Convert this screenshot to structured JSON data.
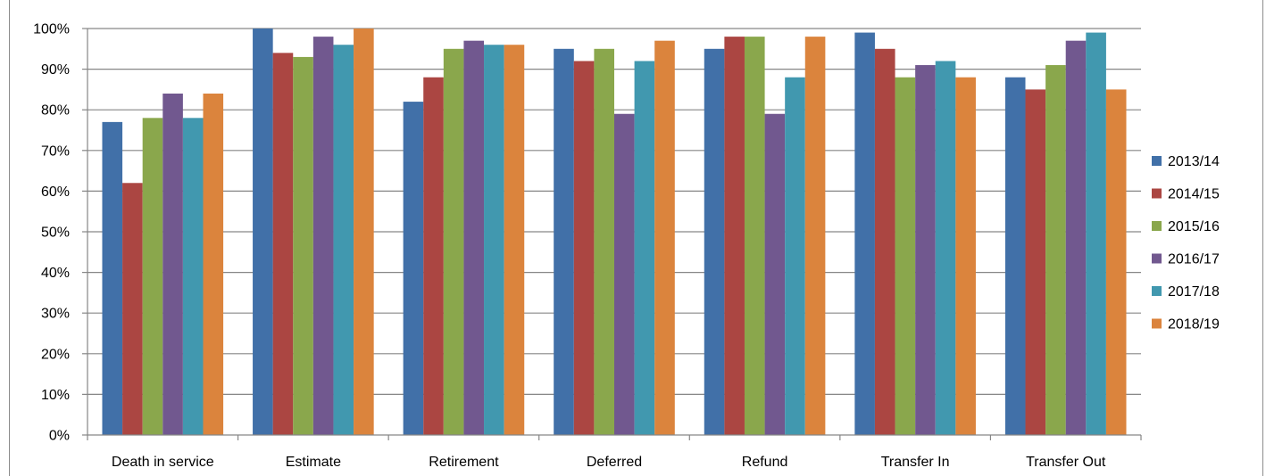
{
  "chart_data": {
    "type": "bar",
    "title": "",
    "xlabel": "",
    "ylabel": "",
    "categories": [
      "Death in service",
      "Estimate",
      "Retirement",
      "Deferred",
      "Refund",
      "Transfer In",
      "Transfer Out"
    ],
    "y_ticks": [
      "0%",
      "10%",
      "20%",
      "30%",
      "40%",
      "50%",
      "60%",
      "70%",
      "80%",
      "90%",
      "100%"
    ],
    "ylim": [
      0,
      100
    ],
    "grid": true,
    "legend_position": "right",
    "series": [
      {
        "name": "2013/14",
        "color": "#4170a8",
        "values": [
          77,
          100,
          82,
          95,
          95,
          99,
          88
        ]
      },
      {
        "name": "2014/15",
        "color": "#ab4642",
        "values": [
          62,
          94,
          88,
          92,
          98,
          95,
          85
        ]
      },
      {
        "name": "2015/16",
        "color": "#8aa74c",
        "values": [
          78,
          93,
          95,
          95,
          98,
          88,
          91
        ]
      },
      {
        "name": "2016/17",
        "color": "#71588f",
        "values": [
          84,
          98,
          97,
          79,
          79,
          91,
          97
        ]
      },
      {
        "name": "2017/18",
        "color": "#4198af",
        "values": [
          78,
          96,
          96,
          92,
          88,
          92,
          99
        ]
      },
      {
        "name": "2018/19",
        "color": "#db843d",
        "values": [
          84,
          100,
          96,
          97,
          98,
          88,
          85
        ]
      }
    ]
  }
}
